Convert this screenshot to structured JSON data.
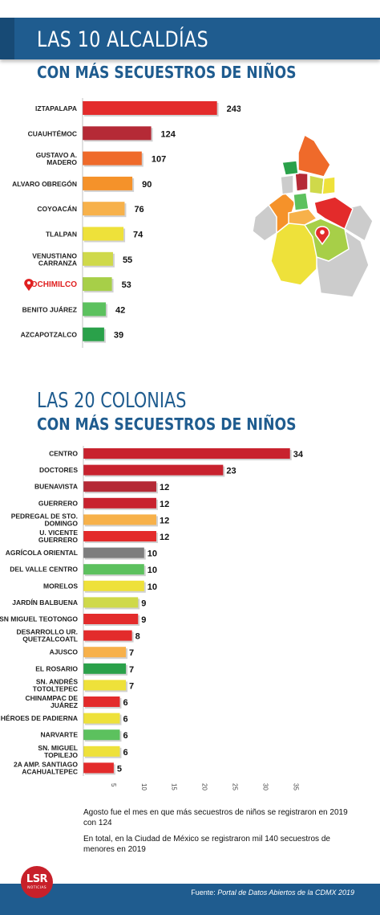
{
  "header": {
    "title1": "LAS 10 ALCALDÍAS",
    "subtitle1": "CON MÁS SECUESTROS DE NIÑOS",
    "title2": "LAS 20 COLONIAS",
    "subtitle2": "CON MÁS SECUESTROS DE NIÑOS"
  },
  "chart_data": [
    {
      "type": "bar",
      "orientation": "horizontal",
      "title": "LAS 10 ALCALDÍAS CON MÁS SECUESTROS DE NIÑOS",
      "categories": [
        "IZTAPALAPA",
        "CUAUHTÉMOC",
        "GUSTAVO A. MADERO",
        "ALVARO OBREGÓN",
        "COYOACÁN",
        "TLALPAN",
        "VENUSTIANO CARRANZA",
        "XOCHIMILCO",
        "BENITO JUÁREZ",
        "AZCAPOTZALCO"
      ],
      "values": [
        243,
        124,
        107,
        90,
        76,
        74,
        55,
        53,
        42,
        39
      ],
      "colors": [
        "#e32b2b",
        "#b52a36",
        "#ef6a2a",
        "#f5922a",
        "#f7b14a",
        "#eee13a",
        "#cfd94a",
        "#a7cf48",
        "#5cc15e",
        "#2aa14a"
      ],
      "xticks": [
        0,
        50,
        100,
        150,
        200,
        250
      ],
      "xlim": [
        0,
        250
      ],
      "highlight": "XOCHIMILCO"
    },
    {
      "type": "bar",
      "orientation": "horizontal",
      "title": "LAS 20 COLONIAS CON MÁS SECUESTROS DE NIÑOS",
      "categories": [
        "CENTRO",
        "DOCTORES",
        "BUENAVISTA",
        "GUERRERO",
        "PEDREGAL DE STO. DOMINGO",
        "U. VICENTE GUERRERO",
        "AGRÍCOLA ORIENTAL",
        "DEL VALLE CENTRO",
        "MORELOS",
        "JARDÍN BALBUENA",
        "SN MIGUEL TEOTONGO",
        "DESARROLLO UR. QUETZALCOATL",
        "AJUSCO",
        "EL ROSARIO",
        "SN. ANDRÉS TOTOLTEPEC",
        "CHINAMPAC DE JUÁREZ",
        "HÉROES DE PADIERNA",
        "NARVARTE",
        "SN. MIGUEL TOPILEJO",
        "2A AMP. SANTIAGO ACAHUALTEPEC"
      ],
      "values": [
        34,
        23,
        12,
        12,
        12,
        12,
        10,
        10,
        10,
        9,
        9,
        8,
        7,
        7,
        7,
        6,
        6,
        6,
        6,
        5
      ],
      "colors": [
        "#c8222e",
        "#c8222e",
        "#b52a36",
        "#c8222e",
        "#f7b14a",
        "#e32b2b",
        "#7d7d7d",
        "#5cc15e",
        "#eee13a",
        "#cfd94a",
        "#e32b2b",
        "#e32b2b",
        "#f7b14a",
        "#2aa14a",
        "#eee13a",
        "#e32b2b",
        "#eee13a",
        "#5cc15e",
        "#eee13a",
        "#e32b2b"
      ],
      "xticks": [
        5,
        10,
        15,
        20,
        25,
        30,
        35
      ],
      "xlim": [
        0,
        35
      ]
    }
  ],
  "notes": {
    "line1": "Agosto fue el mes en que más secuestros de niños se registraron en 2019 con 124",
    "line2": "En total, en la Ciudad de México se registraron mil 140 secuestros de menores en 2019"
  },
  "footer": {
    "source_label": "Fuente: ",
    "source_value": "Portal de Datos Abiertos de la CDMX 2019",
    "logo_text": "LSR",
    "logo_sub": "NOTICIAS"
  },
  "map": {
    "icon": "map-pin-icon",
    "colors": [
      "#a7cf48",
      "#ef6a2a",
      "#2aa14a",
      "#b52a36",
      "#eee13a",
      "#cfd94a",
      "#e32b2b",
      "#f7b14a",
      "#f5922a",
      "#5cc15e",
      "#cccccc"
    ]
  }
}
